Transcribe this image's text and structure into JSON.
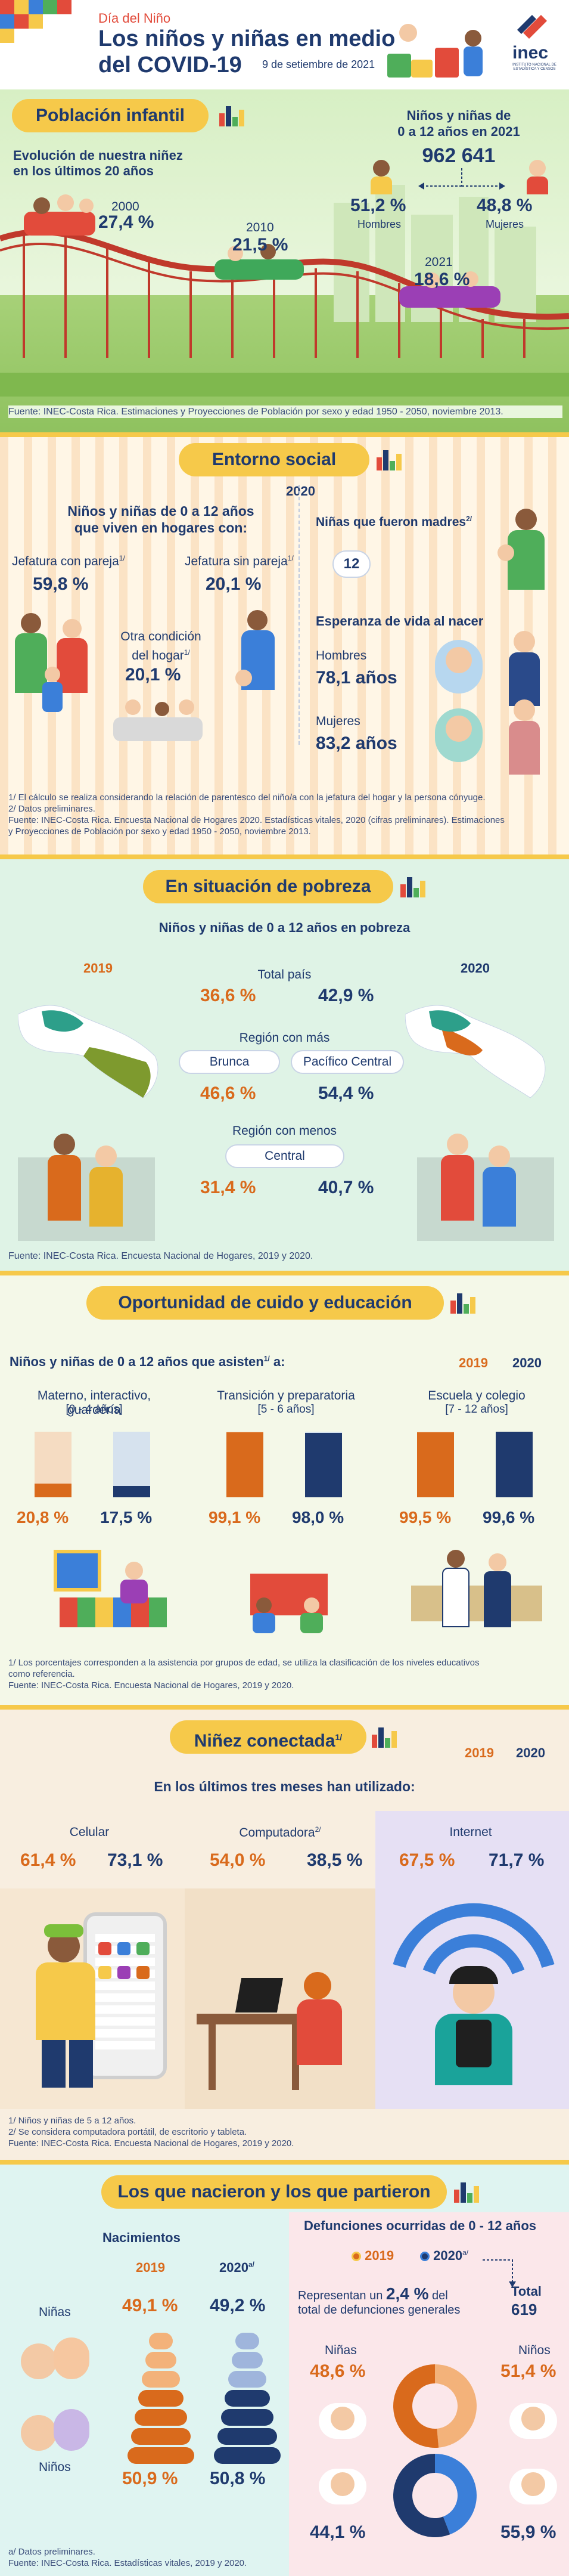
{
  "header": {
    "subtitle": "Día del Niño",
    "title_line1": "Los niños y niñas en medio",
    "title_line2": "del COVID-19",
    "date": "9 de setiembre de 2021",
    "logo_text": "inec",
    "logo_subtext": "INSTITUTO NACIONAL DE ESTADÍSTICA Y CENSOS"
  },
  "poblacion": {
    "banner": "Población infantil",
    "evolution_title_l1": "Evolución de nuestra niñez",
    "evolution_title_l2": "en los últimos 20 años",
    "years": [
      {
        "year": "2000",
        "value": "27,4 %"
      },
      {
        "year": "2010",
        "value": "21,5 %"
      },
      {
        "year": "2021",
        "value": "18,6 %"
      }
    ],
    "total_title_l1": "Niños y niñas de",
    "total_title_l2": "0 a 12 años en 2021",
    "total": "962 641",
    "hombres_pct": "51,2 %",
    "hombres_label": "Hombres",
    "mujeres_pct": "48,8 %",
    "mujeres_label": "Mujeres",
    "source": "Fuente: INEC-Costa Rica. Estimaciones y Proyecciones de Población por sexo y edad 1950 - 2050, noviembre 2013."
  },
  "entorno": {
    "banner": "Entorno social",
    "year": "2020",
    "hogares_title_l1": "Niños y niñas de 0 a 12 años",
    "hogares_title_l2": "que viven en hogares con:",
    "jefatura_pareja_label": "Jefatura con pareja",
    "jefatura_pareja_sup": "1/",
    "jefatura_pareja_value": "59,8 %",
    "jefatura_sin_label": "Jefatura sin pareja",
    "jefatura_sin_sup": "1/",
    "jefatura_sin_value": "20,1 %",
    "otra_label_l1": "Otra condición",
    "otra_label_l2": "del hogar",
    "otra_sup": "1/",
    "otra_value": "20,1 %",
    "madres_label": "Niñas que fueron madres",
    "madres_sup": "2/",
    "madres_value": "12",
    "esperanza_title": "Esperanza de vida al nacer",
    "hombres_label": "Hombres",
    "hombres_value": "78,1 años",
    "mujeres_label": "Mujeres",
    "mujeres_value": "83,2 años",
    "notes": [
      "1/ El cálculo se realiza considerando la relación de parentesco del niño/a con la jefatura del hogar y la persona cónyuge.",
      "2/ Datos preliminares.",
      "Fuente: INEC-Costa Rica. Encuesta Nacional de Hogares 2020. Estadísticas vitales, 2020 (cifras preliminares). Estimaciones",
      "y Proyecciones de Población por sexo y edad 1950 - 2050, noviembre 2013."
    ]
  },
  "pobreza": {
    "banner": "En situación de pobreza",
    "subtitle": "Niños y niñas de 0 a 12 años en pobreza",
    "year_left": "2019",
    "year_right": "2020",
    "total_label": "Total país",
    "total_2019": "36,6 %",
    "total_2020": "42,9 %",
    "region_mas_label": "Región con más",
    "region_mas_2019_name": "Brunca",
    "region_mas_2020_name": "Pacífico Central",
    "region_mas_2019": "46,6 %",
    "region_mas_2020": "54,4 %",
    "region_menos_label": "Región con menos",
    "region_menos_name": "Central",
    "region_menos_2019": "31,4 %",
    "region_menos_2020": "40,7 %",
    "source": "Fuente: INEC-Costa Rica. Encuesta Nacional de Hogares, 2019 y 2020."
  },
  "educacion": {
    "banner": "Oportunidad de cuido y educación",
    "subtitle": "Niños y niñas de 0 a 12 años que asisten",
    "subtitle_sup": "1/",
    "subtitle_tail": " a:",
    "year_left": "2019",
    "year_right": "2020",
    "groups": [
      {
        "label_l1": "Materno, interactivo, guardería",
        "label_l2": "[0 - 4 años]",
        "v2019": "20,8 %",
        "v2020": "17,5 %",
        "f2019": 0.208,
        "f2020": 0.175
      },
      {
        "label_l1": "Transición y preparatoria",
        "label_l2": "[5 - 6 años]",
        "v2019": "99,1 %",
        "v2020": "98,0 %",
        "f2019": 0.991,
        "f2020": 0.98
      },
      {
        "label_l1": "Escuela y colegio",
        "label_l2": "[7 - 12 años]",
        "v2019": "99,5 %",
        "v2020": "99,6 %",
        "f2019": 0.995,
        "f2020": 0.996
      }
    ],
    "notes": [
      "1/ Los porcentajes corresponden a la asistencia por grupos de edad, se utiliza la clasificación de los niveles educativos",
      "como referencia.",
      "Fuente: INEC-Costa Rica. Encuesta Nacional de Hogares, 2019 y 2020."
    ]
  },
  "conectada": {
    "banner": "Niñez conectada",
    "banner_sup": "1/",
    "year_left": "2019",
    "year_right": "2020",
    "subtitle": "En los últimos tres meses han utilizado:",
    "items": [
      {
        "label": "Celular",
        "sup": "",
        "v2019": "61,4 %",
        "v2020": "73,1 %"
      },
      {
        "label": "Computadora",
        "sup": "2/",
        "v2019": "54,0 %",
        "v2020": "38,5 %"
      },
      {
        "label": "Internet",
        "sup": "",
        "v2019": "67,5 %",
        "v2020": "71,7 %"
      }
    ],
    "notes": [
      "1/ Niños y niñas de 5 a 12 años.",
      "2/ Se considera computadora portátil, de escritorio y tableta.",
      "Fuente: INEC-Costa Rica. Encuesta Nacional de Hogares, 2019 y 2020."
    ]
  },
  "nacieron": {
    "banner": "Los que nacieron y los que partieron",
    "nacimientos_title": "Nacimientos",
    "year_left": "2019",
    "year_right": "2020",
    "year_right_sup": "a/",
    "ninas_label": "Niñas",
    "ninos_label": "Niños",
    "ninas_2019": "49,1 %",
    "ninas_2020": "49,2 %",
    "ninos_2019": "50,9 %",
    "ninos_2020": "50,8 %",
    "defunciones_title": "Defunciones ocurridas de 0 - 12 años",
    "legend_2019": "2019",
    "legend_2020": "2020",
    "legend_2020_sup": "a/",
    "total_label": "Total",
    "total_value": "619",
    "represent_l1_a": "Representan un ",
    "represent_pct": "2,4 %",
    "represent_l1_b": " del",
    "represent_l2": "total de defunciones generales",
    "def_ninas_label": "Niñas",
    "def_ninos_label": "Niños",
    "def_ninas_2019": "48,6 %",
    "def_ninos_2019": "51,4 %",
    "def_ninas_2020": "44,1 %",
    "def_ninos_2020": "55,9 %",
    "notes": [
      "a/ Datos preliminares.",
      "Fuente: INEC-Costa Rica. Estadísticas vitales, 2019 y 2020."
    ]
  },
  "colors": {
    "navy": "#1f3a6e",
    "orange": "#d96a1c",
    "yellow": "#f6c94a",
    "green_bg": "#e6f3d6",
    "pink_bg": "#fbe3e6"
  }
}
